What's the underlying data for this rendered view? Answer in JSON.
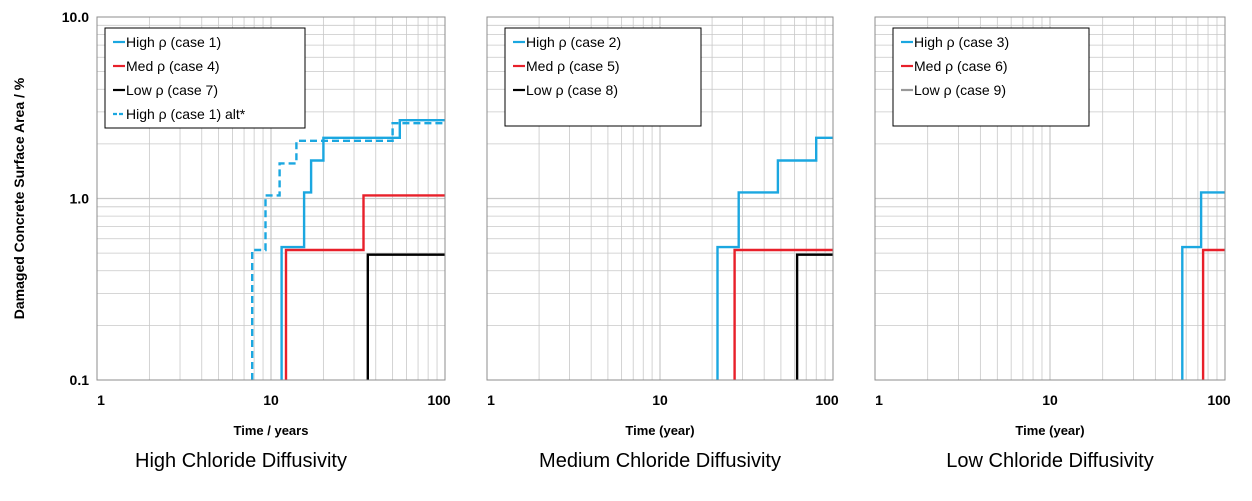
{
  "colors": {
    "high": "#1ba7e0",
    "med": "#e8202a",
    "low": "#000000",
    "grid": "#c8c8c8",
    "frame": "#8c8c8c"
  },
  "y_axis_label": "Damaged Concrete Surface Area / %",
  "chart_data": [
    {
      "type": "line",
      "caption": "High Chloride Diffusivity",
      "xlabel": "Time / years",
      "ylabel": "Damaged Concrete Surface Area / %",
      "x_scale": "log",
      "y_scale": "log",
      "xlim": [
        1,
        100
      ],
      "ylim": [
        0.1,
        10
      ],
      "x_ticks": [
        "1",
        "10",
        "100"
      ],
      "y_ticks": [
        "0.1",
        "1.0",
        "10.0"
      ],
      "legend": "top-left",
      "series": [
        {
          "name": "High ρ (case 1)",
          "color": "high",
          "dash": false,
          "x": [
            11.5,
            11.5,
            15.5,
            15.5,
            17,
            17,
            20,
            20,
            27,
            27,
            55,
            55,
            100
          ],
          "y": [
            0.1,
            0.54,
            0.54,
            1.08,
            1.08,
            1.62,
            1.62,
            2.16,
            2.16,
            2.16,
            2.16,
            2.7,
            2.7
          ]
        },
        {
          "name": "Med ρ (case 4)",
          "color": "med",
          "dash": false,
          "x": [
            12.2,
            12.2,
            34,
            34,
            100
          ],
          "y": [
            0.1,
            0.52,
            0.52,
            1.04,
            1.04
          ]
        },
        {
          "name": "Low ρ (case 7)",
          "color": "low",
          "dash": false,
          "x": [
            36,
            36,
            100
          ],
          "y": [
            0.1,
            0.49,
            0.49
          ]
        },
        {
          "name": "High ρ (case 1) alt*",
          "color": "high",
          "dash": true,
          "x": [
            7.8,
            7.8,
            9.3,
            9.3,
            11.2,
            11.2,
            14,
            14,
            20.5,
            20.5,
            50,
            50,
            100
          ],
          "y": [
            0.1,
            0.52,
            0.52,
            1.04,
            1.04,
            1.56,
            1.56,
            2.08,
            2.08,
            2.08,
            2.08,
            2.6,
            2.6
          ]
        }
      ]
    },
    {
      "type": "line",
      "caption": "Medium Chloride Diffusivity",
      "xlabel": "Time (year)",
      "x_scale": "log",
      "y_scale": "log",
      "xlim": [
        1,
        100
      ],
      "ylim": [
        0.1,
        10
      ],
      "x_ticks": [
        "1",
        "10",
        "100"
      ],
      "legend": "top-left",
      "series": [
        {
          "name": "High ρ (case 2)",
          "color": "high",
          "dash": false,
          "x": [
            21.5,
            21.5,
            28.5,
            28.5,
            48,
            48,
            80,
            80,
            100
          ],
          "y": [
            0.1,
            0.54,
            0.54,
            1.08,
            1.08,
            1.62,
            1.62,
            2.16,
            2.16
          ]
        },
        {
          "name": "Med ρ (case 5)",
          "color": "med",
          "dash": false,
          "x": [
            27,
            27,
            100
          ],
          "y": [
            0.1,
            0.52,
            0.52
          ]
        },
        {
          "name": "Low ρ (case 8)",
          "color": "low",
          "dash": false,
          "x": [
            62,
            62,
            100
          ],
          "y": [
            0.1,
            0.49,
            0.49
          ]
        }
      ]
    },
    {
      "type": "line",
      "caption": "Low Chloride Diffusivity",
      "xlabel": "Time (year)",
      "x_scale": "log",
      "y_scale": "log",
      "xlim": [
        1,
        100
      ],
      "ylim": [
        0.1,
        10
      ],
      "x_ticks": [
        "1",
        "10",
        "100"
      ],
      "legend": "top-left",
      "series": [
        {
          "name": "High ρ (case 3)",
          "color": "high",
          "dash": false,
          "x": [
            57,
            57,
            73,
            73,
            100
          ],
          "y": [
            0.1,
            0.54,
            0.54,
            1.08,
            1.08
          ]
        },
        {
          "name": "Med ρ (case 6)",
          "color": "med",
          "dash": false,
          "x": [
            75,
            75,
            100
          ],
          "y": [
            0.1,
            0.52,
            0.52
          ]
        },
        {
          "name": "Low ρ (case 9)",
          "color": "#999999",
          "dash": false,
          "x": [],
          "y": []
        }
      ]
    }
  ]
}
